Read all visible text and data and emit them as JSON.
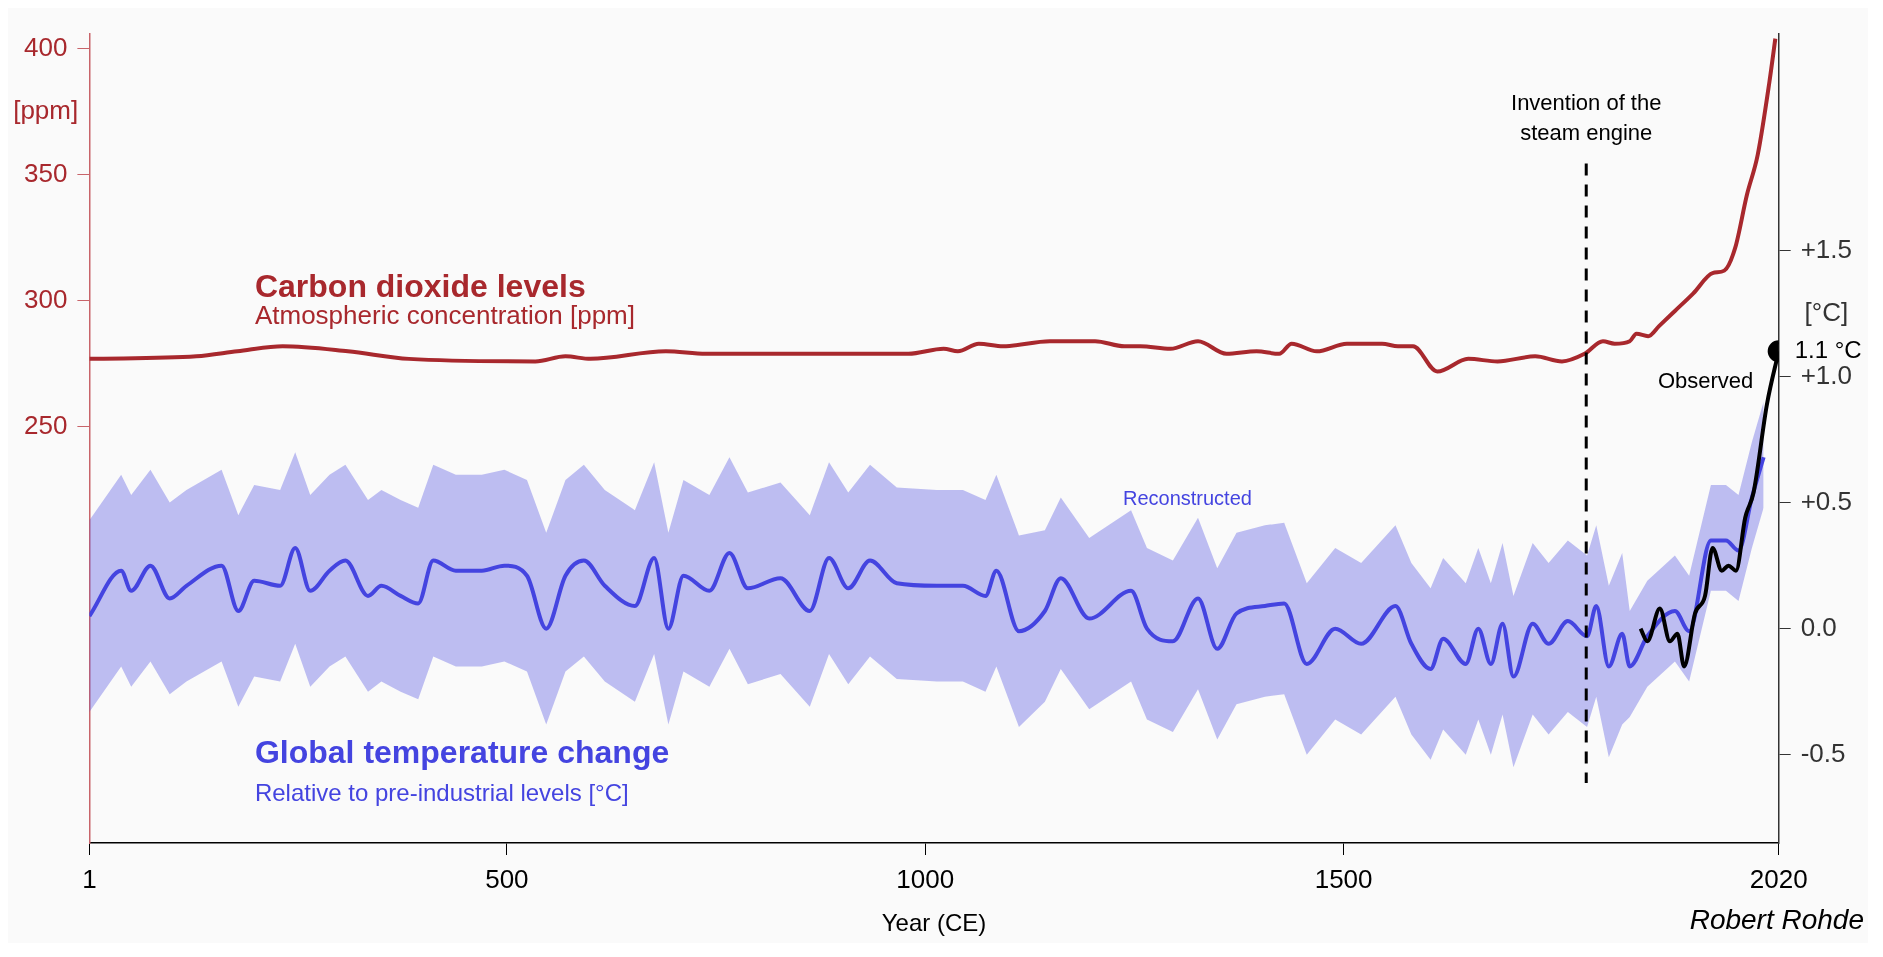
{
  "chart_data": {
    "type": "line",
    "xlabel": "Year (CE)",
    "ylabel": "[ppm]",
    "y2label": "[°C]",
    "xlim": [
      1,
      2020
    ],
    "xticks": [
      1,
      500,
      1000,
      1500,
      2020
    ],
    "ylim": [
      85,
      406
    ],
    "yticks": [
      250,
      300,
      350,
      400
    ],
    "y2lim": [
      -0.85,
      2.36
    ],
    "y2ticks": [
      {
        "value": -0.5,
        "label": "-0.5"
      },
      {
        "value": 0,
        "label": "0.0"
      },
      {
        "value": 0.5,
        "label": "+0.5"
      },
      {
        "value": 1.0,
        "label": "+1.0"
      },
      {
        "value": 1.5,
        "label": "+1.5"
      }
    ],
    "series": [
      {
        "name": "Carbon dioxide levels",
        "color": "#a8282d",
        "axis": "y",
        "x": [
          1,
          129,
          178,
          232,
          310,
          383,
          534,
          570,
          600,
          690,
          738,
          858,
          980,
          1022,
          1039,
          1064,
          1093,
          1149,
          1203,
          1238,
          1257,
          1293,
          1326,
          1360,
          1396,
          1423,
          1438,
          1468,
          1504,
          1546,
          1565,
          1583,
          1612,
          1649,
          1684,
          1729,
          1761,
          1788,
          1810,
          1824,
          1842,
          1850,
          1864,
          1877,
          1896,
          1918,
          1941,
          1955,
          1968,
          1982,
          1995,
          2009,
          2016
        ],
        "values": [
          277,
          278,
          280,
          282,
          280,
          277,
          276,
          278,
          277,
          280,
          279,
          279,
          279,
          281,
          280,
          283,
          282,
          284,
          284,
          282,
          282,
          281,
          284,
          279,
          280,
          279,
          283,
          280,
          283,
          283,
          282,
          282,
          272,
          277,
          276,
          278,
          276,
          279,
          284,
          283,
          284,
          287,
          286,
          290,
          296,
          303,
          311,
          312,
          321,
          342,
          358,
          387,
          404
        ]
      },
      {
        "name": "Reconstructed",
        "color": "#4444e0",
        "axis": "y2",
        "x": [
          1,
          39,
          51,
          74,
          97,
          117,
          159,
          179,
          198,
          229,
          247,
          265,
          288,
          307,
          334,
          350,
          373,
          394,
          412,
          439,
          470,
          497,
          524,
          547,
          570,
          592,
          617,
          653,
          676,
          693,
          711,
          742,
          766,
          788,
          827,
          862,
          885,
          908,
          934,
          966,
          1014,
          1045,
          1072,
          1085,
          1112,
          1143,
          1162,
          1196,
          1246,
          1265,
          1296,
          1326,
          1349,
          1372,
          1406,
          1429,
          1456,
          1490,
          1521,
          1562,
          1581,
          1604,
          1619,
          1646,
          1661,
          1676,
          1690,
          1703,
          1726,
          1745,
          1768,
          1791,
          1802,
          1817,
          1833,
          1842,
          1863,
          1896,
          1913,
          1939,
          1957,
          1972,
          1988,
          2002
        ],
        "values": [
          0.05,
          0.23,
          0.15,
          0.25,
          0.12,
          0.17,
          0.25,
          0.07,
          0.19,
          0.17,
          0.32,
          0.15,
          0.23,
          0.27,
          0.13,
          0.17,
          0.13,
          0.1,
          0.27,
          0.23,
          0.23,
          0.25,
          0.21,
          0.0,
          0.21,
          0.27,
          0.17,
          0.09,
          0.28,
          0.0,
          0.21,
          0.15,
          0.3,
          0.16,
          0.2,
          0.07,
          0.28,
          0.16,
          0.27,
          0.18,
          0.17,
          0.17,
          0.13,
          0.23,
          -0.01,
          0.07,
          0.2,
          0.04,
          0.15,
          0.0,
          -0.05,
          0.12,
          -0.08,
          0.06,
          0.09,
          0.1,
          -0.14,
          0.0,
          -0.06,
          0.09,
          -0.06,
          -0.16,
          -0.04,
          -0.14,
          0.0,
          -0.14,
          0.02,
          -0.19,
          0.02,
          -0.06,
          0.03,
          -0.03,
          0.09,
          -0.15,
          -0.02,
          -0.15,
          -0.03,
          0.07,
          -0.01,
          0.35,
          0.35,
          0.31,
          0.52,
          0.68
        ],
        "upper": [
          0.43,
          0.61,
          0.53,
          0.63,
          0.5,
          0.55,
          0.63,
          0.45,
          0.57,
          0.55,
          0.7,
          0.53,
          0.61,
          0.65,
          0.51,
          0.55,
          0.51,
          0.48,
          0.65,
          0.61,
          0.61,
          0.63,
          0.59,
          0.38,
          0.59,
          0.65,
          0.55,
          0.47,
          0.66,
          0.38,
          0.59,
          0.53,
          0.68,
          0.54,
          0.58,
          0.45,
          0.66,
          0.54,
          0.65,
          0.56,
          0.55,
          0.55,
          0.51,
          0.61,
          0.37,
          0.39,
          0.52,
          0.36,
          0.47,
          0.32,
          0.27,
          0.44,
          0.24,
          0.38,
          0.41,
          0.42,
          0.18,
          0.32,
          0.26,
          0.41,
          0.26,
          0.16,
          0.28,
          0.18,
          0.32,
          0.18,
          0.34,
          0.13,
          0.34,
          0.26,
          0.35,
          0.29,
          0.41,
          0.17,
          0.3,
          0.07,
          0.19,
          0.29,
          0.21,
          0.57,
          0.57,
          0.53,
          0.74,
          0.9
        ],
        "lower": [
          -0.33,
          -0.15,
          -0.23,
          -0.13,
          -0.26,
          -0.21,
          -0.13,
          -0.31,
          -0.19,
          -0.21,
          -0.06,
          -0.23,
          -0.15,
          -0.11,
          -0.25,
          -0.21,
          -0.25,
          -0.28,
          -0.11,
          -0.15,
          -0.15,
          -0.13,
          -0.17,
          -0.38,
          -0.17,
          -0.11,
          -0.21,
          -0.29,
          -0.1,
          -0.38,
          -0.17,
          -0.23,
          -0.08,
          -0.22,
          -0.18,
          -0.31,
          -0.1,
          -0.22,
          -0.11,
          -0.2,
          -0.21,
          -0.21,
          -0.25,
          -0.15,
          -0.39,
          -0.29,
          -0.16,
          -0.32,
          -0.21,
          -0.36,
          -0.41,
          -0.24,
          -0.44,
          -0.3,
          -0.27,
          -0.26,
          -0.5,
          -0.36,
          -0.42,
          -0.27,
          -0.42,
          -0.52,
          -0.4,
          -0.5,
          -0.36,
          -0.5,
          -0.34,
          -0.55,
          -0.34,
          -0.42,
          -0.33,
          -0.39,
          -0.27,
          -0.51,
          -0.38,
          -0.35,
          -0.23,
          -0.13,
          -0.21,
          0.15,
          0.15,
          0.11,
          0.32,
          0.48
        ]
      },
      {
        "name": "Observed",
        "color": "#000000",
        "axis": "y2",
        "x": [
          1855,
          1863,
          1878,
          1890,
          1899,
          1907,
          1920,
          1932,
          1941,
          1952,
          1960,
          1969,
          1980,
          1990,
          2006,
          2020
        ],
        "values": [
          0.0,
          -0.05,
          0.08,
          -0.05,
          -0.02,
          -0.15,
          0.06,
          0.13,
          0.32,
          0.23,
          0.25,
          0.23,
          0.44,
          0.54,
          0.89,
          1.1
        ],
        "value_labels": [
          null,
          null,
          null,
          null,
          null,
          null,
          null,
          null,
          null,
          null,
          null,
          null,
          null,
          null,
          null,
          "1.1 °C"
        ]
      }
    ],
    "ref_lines": [
      {
        "axis": "x",
        "value": 1790,
        "label": "Invention of the steam engine",
        "color": "#000000",
        "line_style": "dashed"
      }
    ],
    "annotations": [
      "Atmospheric concentration [ppm]",
      "Global temperature change",
      "Relative to pre-industrial levels [°C]",
      "Robert Rohde"
    ]
  }
}
